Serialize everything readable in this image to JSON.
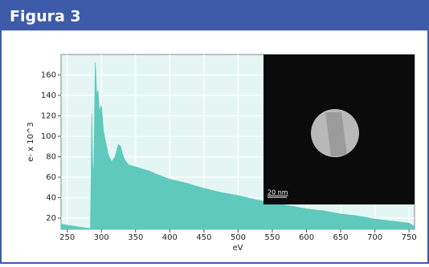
{
  "header": {
    "title": "Figura 3"
  },
  "chart_data": {
    "type": "area",
    "x": [
      241,
      250,
      260,
      270,
      280,
      284,
      285,
      286,
      287,
      288,
      289,
      290,
      291,
      292,
      293,
      295,
      297,
      300,
      303,
      306,
      310,
      315,
      320,
      325,
      328,
      332,
      336,
      340,
      350,
      360,
      370,
      380,
      400,
      425,
      450,
      475,
      500,
      525,
      550,
      575,
      600,
      625,
      650,
      675,
      700,
      725,
      750,
      757
    ],
    "values": [
      14,
      13,
      12,
      11,
      10,
      10,
      60,
      122,
      80,
      62,
      70,
      120,
      172,
      160,
      140,
      145,
      125,
      130,
      105,
      95,
      82,
      75,
      80,
      92,
      90,
      80,
      75,
      72,
      70,
      68,
      66,
      63,
      58,
      54,
      49,
      45,
      42,
      38,
      35,
      32,
      29,
      27,
      24,
      22,
      19,
      17,
      15,
      12
    ],
    "color": "#5ec9bc",
    "xlabel": "eV",
    "ylabel": "e- x 10^3",
    "xlim": [
      241,
      758
    ],
    "ylim": [
      9,
      180
    ],
    "xticks": [
      250,
      300,
      350,
      400,
      450,
      500,
      550,
      600,
      650,
      700,
      750
    ],
    "yticks": [
      20,
      40,
      60,
      80,
      100,
      120,
      140,
      160
    ],
    "grid": true,
    "inset": {
      "scale_label": "20 nm"
    }
  }
}
